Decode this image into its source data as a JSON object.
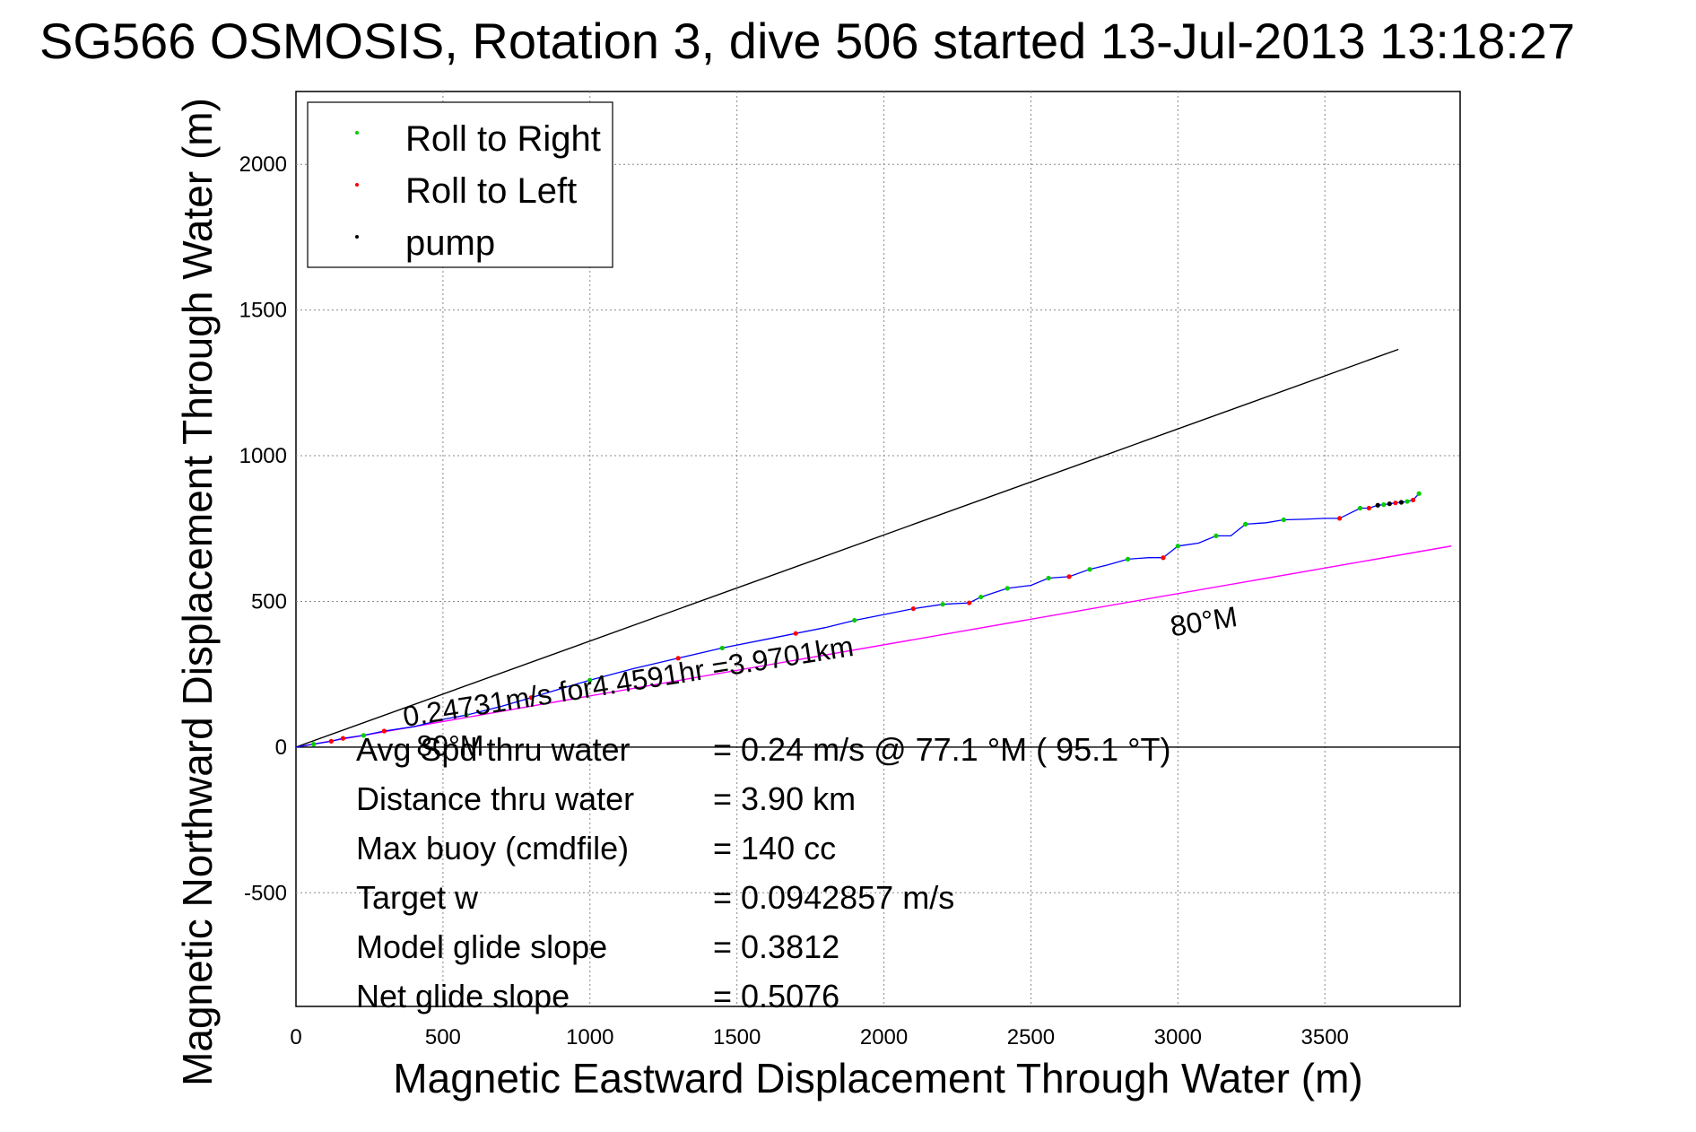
{
  "chart_data": {
    "type": "line",
    "title": "SG566 OSMOSIS, Rotation 3, dive 506 started 13-Jul-2013 13:18:27",
    "xlabel": "Magnetic Eastward Displacement Through Water (m)",
    "ylabel": "Magnetic Northward Displacement Through Water (m)",
    "xlim": [
      0,
      3960
    ],
    "ylim": [
      -890,
      2250
    ],
    "xticks": [
      0,
      500,
      1000,
      1500,
      2000,
      2500,
      3000,
      3500
    ],
    "yticks": [
      -500,
      0,
      500,
      1000,
      1500,
      2000
    ],
    "grid": true,
    "legend": {
      "placement": "top-left",
      "entries": [
        {
          "label": "Roll to Right",
          "color": "#00cc00"
        },
        {
          "label": "Roll to Left",
          "color": "#ff0000"
        },
        {
          "label": "pump",
          "color": "#000000"
        }
      ]
    },
    "colors": {
      "track": "#0000ff",
      "heading_line": "#000000",
      "target_line": "#ff00ff",
      "zero_line": "#000000"
    },
    "series": [
      {
        "kind": "track",
        "x": [
          0,
          60,
          120,
          160,
          230,
          300,
          400,
          500,
          580,
          700,
          800,
          900,
          1000,
          1150,
          1300,
          1450,
          1600,
          1700,
          1800,
          1900,
          2000,
          2100,
          2200,
          2290,
          2330,
          2420,
          2500,
          2560,
          2630,
          2700,
          2760,
          2830,
          2900,
          2950,
          3000,
          3070,
          3130,
          3180,
          3230,
          3300,
          3360,
          3430,
          3500,
          3550,
          3620,
          3650,
          3680,
          3700,
          3720,
          3740,
          3760,
          3780,
          3800,
          3820
        ],
        "y": [
          0,
          10,
          20,
          30,
          40,
          55,
          70,
          95,
          110,
          140,
          170,
          200,
          230,
          270,
          305,
          340,
          370,
          390,
          410,
          435,
          455,
          475,
          490,
          495,
          515,
          545,
          555,
          580,
          585,
          610,
          625,
          645,
          650,
          650,
          690,
          700,
          725,
          725,
          765,
          770,
          780,
          782,
          785,
          785,
          820,
          820,
          830,
          832,
          835,
          838,
          840,
          843,
          848,
          870
        ]
      },
      {
        "kind": "heading_line",
        "x": [
          0,
          3750
        ],
        "y": [
          0,
          1365
        ]
      },
      {
        "kind": "target_line",
        "x": [
          0,
          3930
        ],
        "y": [
          0,
          690
        ]
      }
    ],
    "markers": {
      "roll_right": {
        "x": [
          60,
          230,
          580,
          1000,
          1450,
          1900,
          2200,
          2330,
          2420,
          2560,
          2700,
          2830,
          3000,
          3130,
          3230,
          3360,
          3620,
          3700,
          3780,
          3820
        ],
        "y": [
          10,
          40,
          110,
          230,
          340,
          435,
          490,
          515,
          545,
          580,
          610,
          645,
          690,
          725,
          765,
          780,
          820,
          832,
          843,
          870
        ]
      },
      "roll_left": {
        "x": [
          120,
          160,
          300,
          800,
          1300,
          1700,
          2100,
          2290,
          2630,
          2950,
          3550,
          3650,
          3740,
          3800
        ],
        "y": [
          20,
          30,
          55,
          170,
          305,
          390,
          475,
          495,
          585,
          650,
          785,
          820,
          838,
          848
        ]
      },
      "pump": {
        "x": [
          3680,
          3720,
          3760
        ],
        "y": [
          830,
          835,
          840
        ]
      }
    },
    "annotations": [
      {
        "text": "0.24731m/s for4.4591hr =3.9701km",
        "x": 370,
        "y": 70,
        "rotate": -9
      },
      {
        "text": "80°M",
        "x": 2980,
        "y": 380,
        "rotate": -9
      },
      {
        "text": "80°M",
        "x": 410,
        "y": -30,
        "rotate": 0
      }
    ],
    "stats": [
      {
        "label": "Avg Spd thru water",
        "value": "=  0.24 m/s @  77.1 °M ( 95.1 °T)"
      },
      {
        "label": "Distance thru water",
        "value": "=  3.90 km"
      },
      {
        "label": "Max buoy (cmdfile)",
        "value": "= 140 cc"
      },
      {
        "label": "Target w",
        "value": "= 0.0942857 m/s"
      },
      {
        "label": "Model glide slope",
        "value": "= 0.3812"
      },
      {
        "label": "Net glide slope",
        "value": "= 0.5076"
      }
    ]
  }
}
